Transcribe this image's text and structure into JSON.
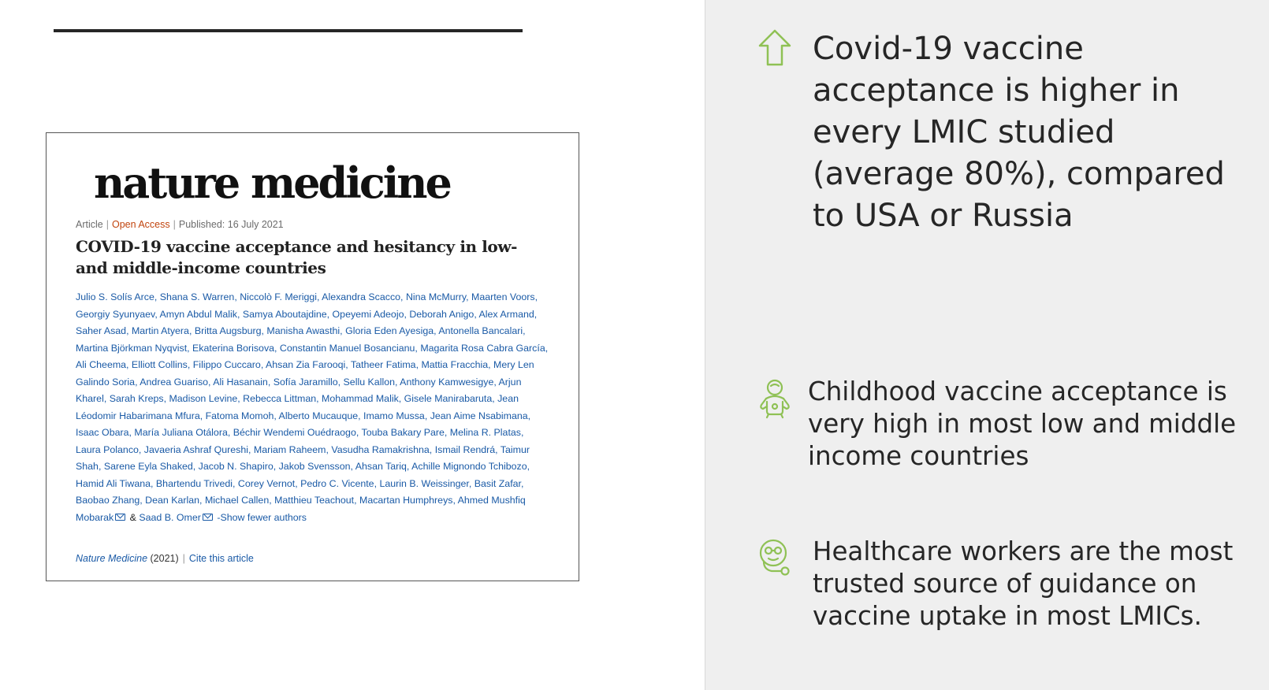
{
  "article": {
    "journal": "nature medicine",
    "type": "Article",
    "access": "Open Access",
    "published": "Published: 16 July 2021",
    "title": "COVID-19 vaccine acceptance and hesitancy in low- and middle-income countries",
    "authors": "Julio S. Solís Arce, Shana S. Warren, Niccolò F. Meriggi, Alexandra Scacco, Nina McMurry, Maarten Voors, Georgiy Syunyaev, Amyn Abdul Malik, Samya Aboutajdine, Opeyemi Adeojo, Deborah Anigo, Alex Armand, Saher Asad, Martin Atyera, Britta Augsburg, Manisha Awasthi, Gloria Eden Ayesiga, Antonella Bancalari, Martina Björkman Nyqvist, Ekaterina Borisova, Constantin Manuel Bosancianu, Magarita Rosa Cabra García, Ali Cheema, Elliott Collins, Filippo Cuccaro, Ahsan Zia Farooqi, Tatheer Fatima, Mattia Fracchia, Mery Len Galindo Soria, Andrea Guariso, Ali Hasanain, Sofía Jaramillo, Sellu Kallon, Anthony Kamwesigye, Arjun Kharel, Sarah Kreps, Madison Levine, Rebecca Littman, Mohammad Malik, Gisele Manirabaruta, Jean Léodomir Habarimana Mfura, Fatoma Momoh, Alberto Mucauque, Imamo Mussa, Jean Aime Nsabimana, Isaac Obara, María Juliana Otálora, Béchir Wendemi Ouédraogo, Touba Bakary Pare, Melina R. Platas, Laura Polanco, Javaeria Ashraf Qureshi, Mariam Raheem, Vasudha Ramakrishna, Ismail Rendrá, Taimur Shah, Sarene Eyla Shaked, Jacob N. Shapiro, Jakob Svensson, Ahsan Tariq, Achille Mignondo Tchibozo, Hamid Ali Tiwana, Bhartendu Trivedi, Corey Vernot, Pedro C. Vicente, Laurin B. Weissinger, Basit Zafar, Baobao Zhang, Dean Karlan, Michael Callen, Matthieu Teachout, Macartan Humphreys, Ahmed Mushfiq Mobarak",
    "last_author_connector": "&",
    "last_author": "Saad B. Omer",
    "show_fewer": "-Show fewer authors",
    "citation_journal": "Nature Medicine",
    "citation_year": "(2021)",
    "cite_link": "Cite this article"
  },
  "points": [
    {
      "icon": "arrow-up-icon",
      "text": "Covid-19 vaccine acceptance is higher in every LMIC studied (average 80%), compared to USA or Russia"
    },
    {
      "icon": "baby-icon",
      "text": "Childhood vaccine acceptance is very high in most low and middle income countries"
    },
    {
      "icon": "doctor-stethoscope-icon",
      "text": "Healthcare workers are the most trusted source of guidance on vaccine uptake in most LMICs."
    }
  ],
  "colors": {
    "icon_green": "#8fc155",
    "link_blue": "#1a5aa6",
    "open_access": "#c1440e",
    "panel_bg": "#efefef"
  }
}
